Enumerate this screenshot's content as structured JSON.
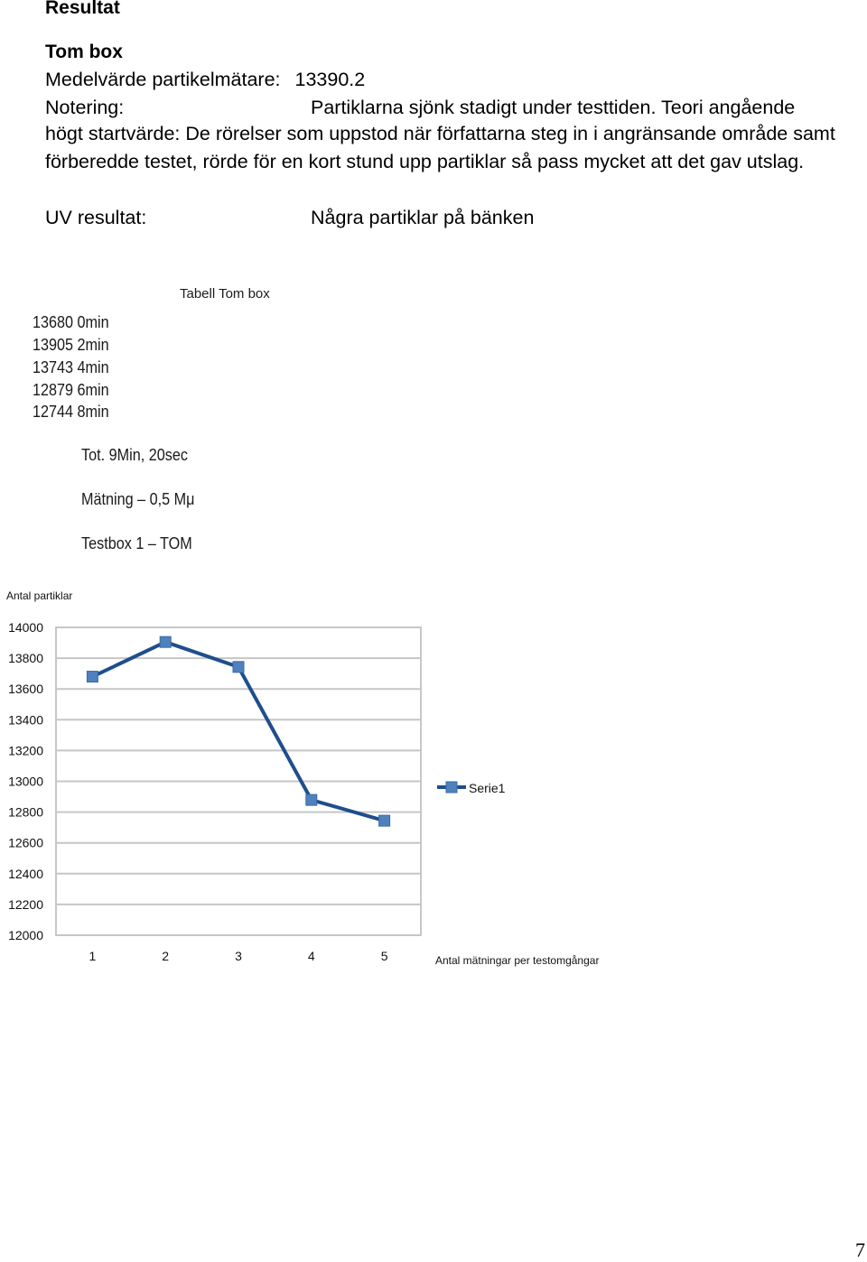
{
  "section_heading": "Resultat",
  "subheading": "Tom box",
  "mean": {
    "label": "Medelvärde partikelmätare:",
    "value": "13390.2"
  },
  "note": {
    "label": "Notering:",
    "first_line": "Partiklarna sjönk stadigt under testtiden. Teori angående",
    "continuation": "högt startvärde: De rörelser som uppstod när författarna steg in i angränsande område samt förberedde testet, rörde för en kort stund upp partiklar så pass mycket att det gav utslag."
  },
  "uv": {
    "label": "UV resultat:",
    "value": "Några partiklar på bänken"
  },
  "table": {
    "title": "Tabell Tom box",
    "rows": [
      "13680 0min",
      "13905 2min",
      "13743 4min",
      "12879 6min",
      "12744 8min"
    ]
  },
  "notes": [
    "Tot. 9Min, 20sec",
    "Mätning – 0,5 Mμ",
    "Testbox 1 – TOM"
  ],
  "chart_data": {
    "type": "line",
    "ylabel": "Antal partiklar",
    "xlabel": "Antal mätningar per testomgångar",
    "categories": [
      "1",
      "2",
      "3",
      "4",
      "5"
    ],
    "series": [
      {
        "name": "Serie1",
        "values": [
          13680,
          13905,
          13743,
          12879,
          12744
        ]
      }
    ],
    "ylim": [
      12000,
      14000
    ],
    "yticks": [
      14000,
      13800,
      13600,
      13400,
      13200,
      13000,
      12800,
      12600,
      12400,
      12200,
      12000
    ],
    "grid": true,
    "legend": "right",
    "line_color": "#1f4e8c",
    "marker_color": "#4f81bd"
  },
  "page_number": "7"
}
